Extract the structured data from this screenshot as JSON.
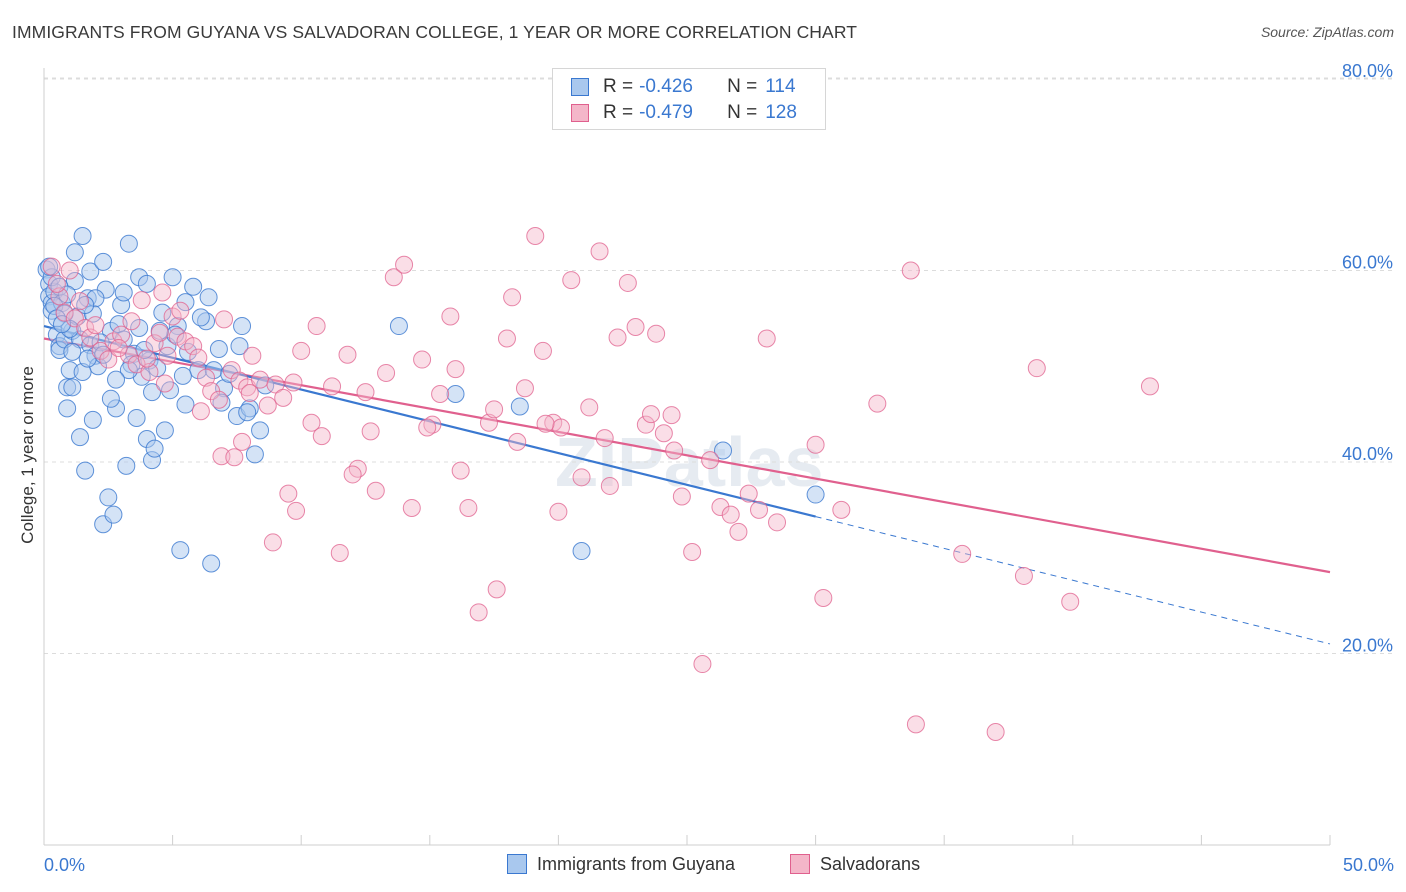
{
  "title": "IMMIGRANTS FROM GUYANA VS SALVADORAN COLLEGE, 1 YEAR OR MORE CORRELATION CHART",
  "source": "Source: ZipAtlas.com",
  "watermark": "ZIPatlas",
  "colors": {
    "blue": "#3a78d0",
    "blue_fill": "#a9c8ee",
    "pink": "#e0608e",
    "pink_fill": "#f4b6c9"
  },
  "stats": [
    {
      "r_label": "R =",
      "r_value": "-0.426",
      "n_label": "N =",
      "n_value": "114"
    },
    {
      "r_label": "R =",
      "r_value": "-0.479",
      "n_label": "N =",
      "n_value": "128"
    }
  ],
  "chart_data": {
    "type": "scatter",
    "title": "IMMIGRANTS FROM GUYANA VS SALVADORAN COLLEGE, 1 YEAR OR MORE CORRELATION CHART",
    "xlabel": "",
    "ylabel": "College, 1 year or more",
    "xlim": [
      0,
      50
    ],
    "ylim": [
      0,
      85
    ],
    "x_tick_labels": [
      "0.0%",
      "50.0%"
    ],
    "y_ticks": [
      20,
      40,
      60,
      80
    ],
    "y_tick_labels": [
      "20.0%",
      "40.0%",
      "60.0%",
      "80.0%"
    ],
    "grid": true,
    "legend_position": "bottom-center",
    "series": [
      {
        "name": "Immigrants from Guyana",
        "color": "#3a78d0",
        "trend": {
          "x0": 0,
          "y0": 54.2,
          "x1": 30,
          "y1": 34.3,
          "dashed_to_x": 50,
          "dashed_to_y": 21.0
        },
        "points": [
          [
            0.1,
            60.1
          ],
          [
            0.2,
            58.6
          ],
          [
            0.2,
            57.3
          ],
          [
            0.3,
            56.6
          ],
          [
            0.3,
            55.8
          ],
          [
            0.4,
            57.8
          ],
          [
            0.5,
            53.3
          ],
          [
            0.6,
            52.1
          ],
          [
            0.6,
            51.7
          ],
          [
            0.7,
            56.6
          ],
          [
            0.8,
            52.8
          ],
          [
            0.9,
            47.8
          ],
          [
            0.9,
            45.6
          ],
          [
            1.0,
            49.6
          ],
          [
            1.1,
            47.8
          ],
          [
            1.1,
            53.7
          ],
          [
            1.2,
            61.9
          ],
          [
            1.2,
            58.9
          ],
          [
            1.4,
            52.8
          ],
          [
            1.4,
            42.6
          ],
          [
            1.5,
            63.6
          ],
          [
            1.6,
            39.1
          ],
          [
            1.7,
            57.1
          ],
          [
            1.8,
            59.9
          ],
          [
            1.8,
            52.2
          ],
          [
            1.9,
            44.4
          ],
          [
            2.0,
            51.1
          ],
          [
            2.1,
            50.0
          ],
          [
            2.3,
            60.9
          ],
          [
            2.3,
            33.5
          ],
          [
            2.5,
            36.3
          ],
          [
            2.6,
            53.7
          ],
          [
            2.7,
            34.5
          ],
          [
            2.8,
            45.6
          ],
          [
            3.0,
            56.4
          ],
          [
            3.1,
            57.7
          ],
          [
            3.2,
            39.6
          ],
          [
            3.3,
            62.8
          ],
          [
            3.5,
            51.3
          ],
          [
            3.6,
            44.6
          ],
          [
            3.7,
            59.3
          ],
          [
            3.8,
            48.9
          ],
          [
            4.0,
            42.4
          ],
          [
            4.1,
            50.6
          ],
          [
            4.2,
            47.3
          ],
          [
            4.2,
            40.2
          ],
          [
            4.3,
            41.4
          ],
          [
            4.6,
            55.6
          ],
          [
            4.7,
            43.3
          ],
          [
            4.8,
            52.1
          ],
          [
            5.0,
            59.3
          ],
          [
            5.2,
            54.2
          ],
          [
            5.3,
            30.8
          ],
          [
            5.5,
            56.7
          ],
          [
            5.5,
            46.0
          ],
          [
            6.0,
            49.6
          ],
          [
            6.3,
            54.7
          ],
          [
            6.4,
            57.2
          ],
          [
            6.5,
            29.4
          ],
          [
            6.6,
            49.6
          ],
          [
            7.0,
            47.7
          ],
          [
            7.2,
            49.2
          ],
          [
            7.5,
            44.8
          ],
          [
            7.7,
            54.2
          ],
          [
            8.0,
            45.6
          ],
          [
            8.2,
            40.8
          ],
          [
            8.4,
            43.3
          ],
          [
            8.6,
            48.0
          ],
          [
            13.8,
            54.2
          ],
          [
            16.0,
            47.1
          ],
          [
            18.5,
            45.8
          ],
          [
            20.9,
            30.7
          ],
          [
            26.4,
            41.2
          ],
          [
            30.0,
            36.6
          ],
          [
            5.1,
            53.3
          ],
          [
            2.2,
            52.5
          ],
          [
            1.3,
            55.2
          ],
          [
            0.4,
            56.3
          ],
          [
            7.6,
            52.1
          ],
          [
            3.9,
            51.7
          ],
          [
            6.1,
            55.1
          ],
          [
            1.5,
            49.4
          ],
          [
            2.9,
            54.4
          ],
          [
            4.4,
            49.8
          ],
          [
            0.8,
            55.5
          ],
          [
            1.7,
            50.8
          ],
          [
            5.8,
            58.3
          ],
          [
            0.3,
            59.3
          ],
          [
            3.4,
            50.2
          ],
          [
            2.4,
            58.0
          ],
          [
            6.8,
            51.8
          ],
          [
            4.9,
            47.5
          ],
          [
            1.0,
            53.9
          ],
          [
            0.6,
            58.3
          ],
          [
            2.6,
            46.6
          ],
          [
            3.1,
            52.8
          ],
          [
            0.2,
            60.4
          ],
          [
            1.9,
            55.5
          ],
          [
            4.5,
            53.7
          ],
          [
            5.6,
            51.5
          ],
          [
            0.5,
            55.0
          ],
          [
            2.0,
            57.1
          ],
          [
            3.3,
            49.6
          ],
          [
            1.1,
            51.5
          ],
          [
            6.9,
            46.2
          ],
          [
            0.7,
            54.4
          ],
          [
            4.0,
            58.6
          ],
          [
            2.8,
            48.6
          ],
          [
            1.6,
            56.4
          ],
          [
            7.9,
            45.2
          ],
          [
            5.4,
            49.0
          ],
          [
            0.9,
            57.5
          ],
          [
            3.7,
            54.0
          ],
          [
            2.3,
            51.2
          ]
        ]
      },
      {
        "name": "Salvadorans",
        "color": "#e0608e",
        "trend": {
          "x0": 0,
          "y0": 52.9,
          "x1": 50,
          "y1": 28.5
        },
        "points": [
          [
            0.3,
            60.4
          ],
          [
            0.6,
            57.3
          ],
          [
            0.8,
            55.6
          ],
          [
            1.2,
            55.0
          ],
          [
            1.6,
            54.0
          ],
          [
            1.8,
            53.0
          ],
          [
            2.2,
            51.6
          ],
          [
            2.5,
            50.7
          ],
          [
            2.7,
            52.6
          ],
          [
            3.0,
            53.3
          ],
          [
            3.3,
            51.2
          ],
          [
            3.6,
            50.2
          ],
          [
            3.8,
            56.9
          ],
          [
            4.1,
            49.4
          ],
          [
            4.3,
            52.4
          ],
          [
            4.5,
            53.5
          ],
          [
            4.6,
            57.7
          ],
          [
            4.8,
            51.1
          ],
          [
            5.0,
            55.2
          ],
          [
            5.2,
            53.1
          ],
          [
            5.5,
            52.6
          ],
          [
            5.8,
            52.1
          ],
          [
            6.0,
            50.9
          ],
          [
            6.3,
            48.8
          ],
          [
            6.5,
            47.4
          ],
          [
            6.8,
            46.5
          ],
          [
            7.0,
            54.9
          ],
          [
            7.3,
            49.6
          ],
          [
            7.6,
            48.5
          ],
          [
            7.9,
            47.8
          ],
          [
            8.1,
            51.1
          ],
          [
            8.4,
            48.6
          ],
          [
            8.7,
            45.9
          ],
          [
            9.0,
            48.1
          ],
          [
            9.3,
            46.7
          ],
          [
            9.5,
            36.7
          ],
          [
            9.8,
            34.9
          ],
          [
            10.0,
            51.6
          ],
          [
            10.4,
            44.1
          ],
          [
            10.8,
            42.7
          ],
          [
            11.2,
            47.9
          ],
          [
            11.5,
            30.5
          ],
          [
            11.8,
            51.2
          ],
          [
            12.2,
            39.3
          ],
          [
            12.5,
            47.3
          ],
          [
            12.9,
            37.0
          ],
          [
            13.3,
            49.3
          ],
          [
            13.6,
            59.3
          ],
          [
            14.0,
            60.6
          ],
          [
            14.3,
            35.2
          ],
          [
            14.7,
            50.7
          ],
          [
            15.1,
            43.9
          ],
          [
            15.4,
            47.1
          ],
          [
            15.8,
            55.2
          ],
          [
            16.2,
            39.1
          ],
          [
            16.5,
            35.2
          ],
          [
            16.9,
            24.3
          ],
          [
            17.3,
            44.1
          ],
          [
            17.6,
            26.7
          ],
          [
            18.0,
            52.9
          ],
          [
            18.4,
            42.1
          ],
          [
            18.7,
            47.7
          ],
          [
            19.1,
            63.6
          ],
          [
            19.4,
            51.6
          ],
          [
            19.8,
            44.1
          ],
          [
            20.1,
            43.6
          ],
          [
            20.5,
            59.0
          ],
          [
            20.9,
            38.4
          ],
          [
            21.2,
            45.7
          ],
          [
            21.6,
            62.0
          ],
          [
            22.0,
            37.5
          ],
          [
            22.3,
            53.0
          ],
          [
            22.7,
            58.7
          ],
          [
            23.0,
            54.1
          ],
          [
            23.4,
            43.9
          ],
          [
            23.8,
            53.4
          ],
          [
            24.1,
            43.0
          ],
          [
            24.5,
            41.2
          ],
          [
            24.8,
            36.4
          ],
          [
            25.2,
            30.6
          ],
          [
            25.6,
            18.9
          ],
          [
            25.9,
            40.2
          ],
          [
            26.3,
            35.3
          ],
          [
            26.7,
            34.5
          ],
          [
            27.0,
            32.7
          ],
          [
            27.4,
            36.7
          ],
          [
            27.8,
            35.0
          ],
          [
            28.1,
            52.9
          ],
          [
            28.5,
            33.7
          ],
          [
            30.0,
            41.8
          ],
          [
            30.3,
            25.8
          ],
          [
            31.0,
            35.0
          ],
          [
            32.4,
            46.1
          ],
          [
            33.7,
            60.0
          ],
          [
            33.9,
            12.6
          ],
          [
            35.7,
            30.4
          ],
          [
            37.0,
            11.8
          ],
          [
            38.1,
            28.1
          ],
          [
            38.6,
            49.8
          ],
          [
            39.9,
            25.4
          ],
          [
            43.0,
            47.9
          ],
          [
            0.5,
            58.6
          ],
          [
            1.0,
            60.0
          ],
          [
            1.4,
            56.8
          ],
          [
            2.0,
            54.3
          ],
          [
            2.9,
            51.9
          ],
          [
            3.4,
            54.7
          ],
          [
            4.0,
            50.8
          ],
          [
            4.7,
            48.2
          ],
          [
            5.3,
            55.8
          ],
          [
            6.1,
            45.3
          ],
          [
            6.9,
            40.6
          ],
          [
            7.4,
            40.5
          ],
          [
            8.0,
            47.2
          ],
          [
            8.9,
            31.6
          ],
          [
            10.6,
            54.2
          ],
          [
            12.0,
            38.7
          ],
          [
            14.9,
            43.6
          ],
          [
            16.0,
            49.7
          ],
          [
            17.5,
            45.5
          ],
          [
            18.2,
            57.2
          ],
          [
            19.5,
            44.0
          ],
          [
            20.0,
            34.8
          ],
          [
            21.8,
            42.5
          ],
          [
            23.6,
            45.0
          ],
          [
            24.4,
            44.9
          ],
          [
            12.7,
            43.2
          ],
          [
            9.7,
            48.3
          ],
          [
            7.7,
            42.1
          ]
        ]
      }
    ]
  },
  "legend": {
    "items": [
      "Immigrants from Guyana",
      "Salvadorans"
    ]
  },
  "ylabel": "College, 1 year or more"
}
